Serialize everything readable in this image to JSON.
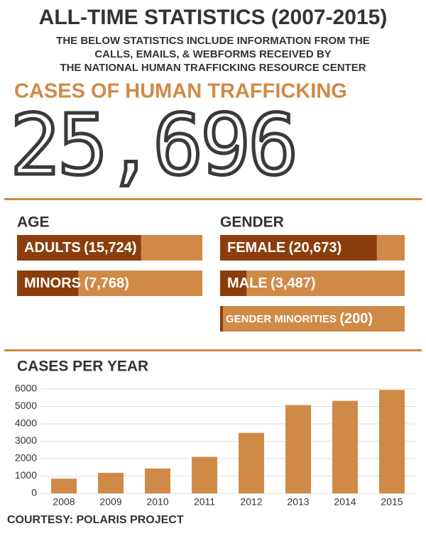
{
  "header": {
    "title": "ALL-TIME STATISTICS (2007-2015)",
    "subtitle": [
      "THE BELOW STATISTICS INCLUDE INFORMATION FROM THE",
      "CALLS, EMAILS, & WEBFORMS RECEIVED BY",
      "THE NATIONAL HUMAN TRAFFICKING RESOURCE CENTER"
    ]
  },
  "cases": {
    "label": "CASES OF HUMAN TRAFFICKING",
    "total": "25,696"
  },
  "breakdown": [
    {
      "title": "AGE",
      "items": [
        {
          "name": "ADULTS",
          "value": 15724,
          "value_label": "(15,724)"
        },
        {
          "name": "MINORS",
          "value": 7768,
          "value_label": "(7,768)"
        }
      ]
    },
    {
      "title": "GENDER",
      "items": [
        {
          "name": "FEMALE",
          "value": 20673,
          "value_label": "(20,673)"
        },
        {
          "name": "MALE",
          "value": 3487,
          "value_label": "(3,487)"
        },
        {
          "name": "GENDER MINORITIES",
          "value": 200,
          "value_label": "(200)"
        }
      ]
    }
  ],
  "chart_data": {
    "type": "bar",
    "title": "CASES PER YEAR",
    "categories": [
      "2008",
      "2009",
      "2010",
      "2011",
      "2012",
      "2013",
      "2014",
      "2015"
    ],
    "values": [
      850,
      1180,
      1430,
      2100,
      3480,
      5080,
      5320,
      5950
    ],
    "color": "#d08a47",
    "ylim": [
      0,
      6000
    ],
    "yticks": [
      0,
      1000,
      2000,
      3000,
      4000,
      5000,
      6000
    ],
    "grid": true
  },
  "footer": {
    "credit": "COURTESY: POLARIS PROJECT"
  }
}
